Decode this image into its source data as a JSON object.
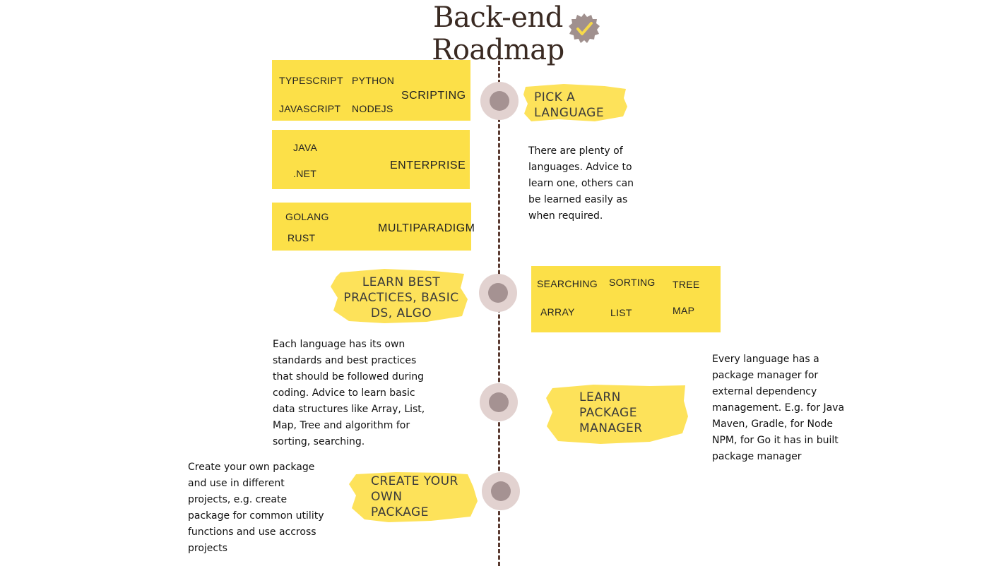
{
  "header": {
    "title_line1": "Back-end",
    "title_line2": "Roadmap",
    "badge_icon": "check-badge-icon"
  },
  "colors": {
    "yellow": "#fce048",
    "node_outer": "#e2d2d0",
    "node_inner": "#a59292",
    "timeline": "#5a3a30"
  },
  "language_groups": [
    {
      "category": "SCRIPTING",
      "options": [
        "TYPESCRIPT",
        "PYTHON",
        "JAVASCRIPT",
        "NODEJS"
      ]
    },
    {
      "category": "ENTERPRISE",
      "options": [
        "JAVA",
        ".NET"
      ]
    },
    {
      "category": "MULTIPARADIGM",
      "options": [
        "GOLANG",
        "RUST"
      ]
    }
  ],
  "steps": [
    {
      "label_lines": [
        "PICK A",
        "LANGUAGE"
      ],
      "description_lines": [
        "There are plenty of",
        "languages. Advice to",
        "learn one, others can",
        "be learned easily as",
        "when required."
      ]
    },
    {
      "label_lines": [
        "LEARN  BEST",
        "PRACTICES, BASIC",
        "DS, ALGO"
      ],
      "description_lines": [
        "Each language has its own",
        "standards and best practices",
        "that should be followed during",
        "coding. Advice to learn basic",
        "data structures like Array, List,",
        "Map, Tree and algorithm for",
        "sorting, searching."
      ]
    },
    {
      "label_lines": [
        "LEARN",
        "PACKAGE",
        "MANAGER"
      ],
      "description_lines": [
        "Every language has a",
        "package manager for",
        "external dependency",
        "management. E.g. for Java",
        "Maven, Gradle, for Node",
        "NPM, for Go it has in built",
        "package manager"
      ]
    },
    {
      "label_lines": [
        "CREATE  YOUR",
        "OWN",
        "PACKAGE"
      ],
      "description_lines": [
        "Create your own package",
        "and use in different",
        "projects, e.g. create",
        "package for common utility",
        "functions and use accross",
        "projects"
      ]
    }
  ],
  "ds_algo_topics": [
    "SEARCHING",
    "SORTING",
    "TREE",
    "ARRAY",
    "LIST",
    "MAP"
  ]
}
